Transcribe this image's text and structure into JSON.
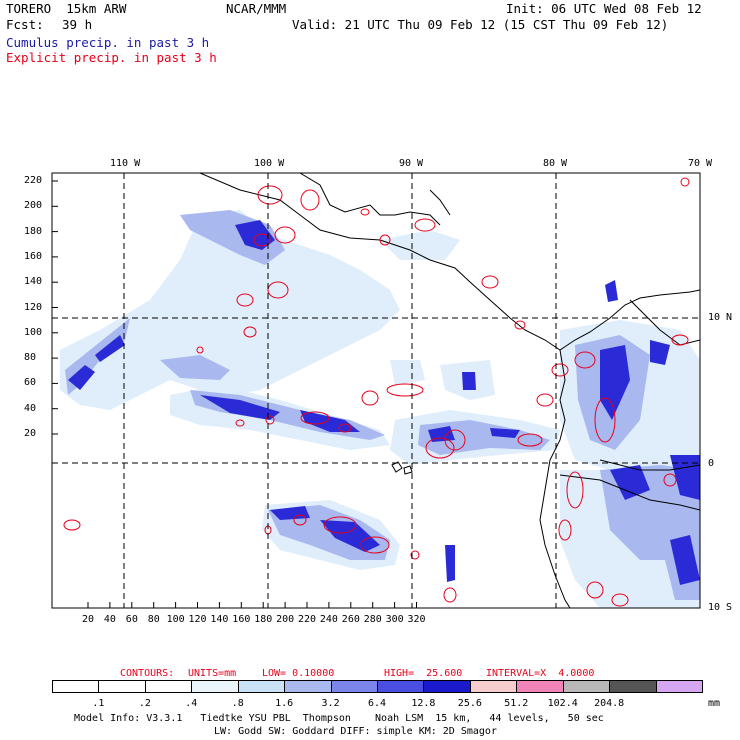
{
  "header": {
    "model": "TORERO  15km ARW",
    "org": "NCAR/MMM",
    "init": "Init: 06 UTC Wed 08 Feb 12",
    "fcst_label": "Fcst:",
    "fcst_value": "39 h",
    "valid": "Valid: 21 UTC Thu 09 Feb 12 (15 CST Thu 09 Feb 12)"
  },
  "legend": {
    "cumulus": "Cumulus precip. in past 3 h",
    "explicit": "Explicit precip. in past 3 h",
    "cumulus_color": "#1a1aa6",
    "explicit_color": "#e8001a"
  },
  "axes": {
    "top_lon": [
      "110 W",
      "100 W",
      "90 W",
      "80 W",
      "70 W"
    ],
    "right_lat": [
      "10 N",
      "0",
      "10 S"
    ],
    "left_y": [
      "220",
      "200",
      "180",
      "160",
      "140",
      "120",
      "100",
      "80",
      "60",
      "40",
      "20"
    ],
    "bottom_x": [
      "20",
      "40",
      "60",
      "80",
      "100",
      "120",
      "140",
      "160",
      "180",
      "200",
      "220",
      "240",
      "260",
      "280",
      "300",
      "320"
    ]
  },
  "contour_info": {
    "contours": "CONTOURS:",
    "units": "UNITS=mm",
    "low": "LOW= 0.10000",
    "high": "HIGH=  25.600",
    "interval": "INTERVAL=X  4.0000"
  },
  "colorbar": {
    "labels": [
      ".1",
      ".2",
      ".4",
      ".8",
      "1.6",
      "3.2",
      "6.4",
      "12.8",
      "25.6",
      "51.2",
      "102.4",
      "204.8"
    ],
    "unit": "mm",
    "colors": [
      "#ffffff",
      "#ffffff",
      "#ffffff",
      "#eaf4fb",
      "#c9e2f5",
      "#a9b8ef",
      "#7c86ea",
      "#4a4ee3",
      "#1a1acc",
      "#f7cccc",
      "#f084b8",
      "#b8b8b8",
      "#555555",
      "#d7a6f3"
    ]
  },
  "footer": {
    "line1": "Model Info: V3.3.1   Tiedtke YSU PBL  Thompson    Noah LSM  15 km,   44 levels,   50 sec",
    "line2": "LW: Godd SW: Goddard DIFF: simple KM: 2D Smagor"
  }
}
